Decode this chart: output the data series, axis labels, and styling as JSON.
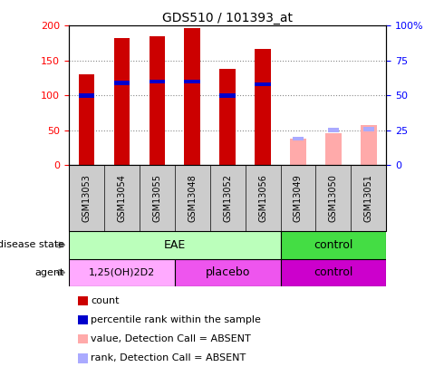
{
  "title": "GDS510 / 101393_at",
  "samples": [
    "GSM13053",
    "GSM13054",
    "GSM13055",
    "GSM13048",
    "GSM13052",
    "GSM13056",
    "GSM13049",
    "GSM13050",
    "GSM13051"
  ],
  "count_values": [
    130,
    182,
    185,
    196,
    138,
    167,
    null,
    null,
    null
  ],
  "percentile_rank": [
    100,
    118,
    120,
    120,
    100,
    116,
    null,
    null,
    null
  ],
  "absent_value": [
    null,
    null,
    null,
    null,
    null,
    null,
    38,
    46,
    58
  ],
  "absent_rank": [
    null,
    null,
    null,
    null,
    null,
    null,
    38,
    50,
    52
  ],
  "ylim_left": [
    0,
    200
  ],
  "ylim_right": [
    0,
    100
  ],
  "yticks_left": [
    0,
    50,
    100,
    150,
    200
  ],
  "ytick_labels_right": [
    "0",
    "25",
    "50",
    "75",
    "100%"
  ],
  "count_color": "#cc0000",
  "percentile_color": "#0000cc",
  "absent_value_color": "#ffaaaa",
  "absent_rank_color": "#aaaaff",
  "disease_light_green": "#bbffbb",
  "disease_dark_green": "#44dd44",
  "agent_light_pink": "#ffaaff",
  "agent_mid_pink": "#ee55ee",
  "agent_dark_pink": "#cc00cc",
  "tick_bg_color": "#cccccc",
  "gridline_color": "#888888",
  "legend_items": [
    {
      "color": "#cc0000",
      "label": "count"
    },
    {
      "color": "#0000cc",
      "label": "percentile rank within the sample"
    },
    {
      "color": "#ffaaaa",
      "label": "value, Detection Call = ABSENT"
    },
    {
      "color": "#aaaaff",
      "label": "rank, Detection Call = ABSENT"
    }
  ],
  "bar_width": 0.45,
  "title_fontsize": 10,
  "label_fontsize": 8
}
